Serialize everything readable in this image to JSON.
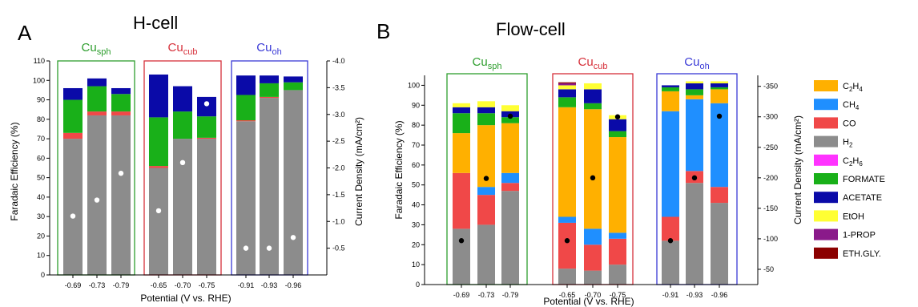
{
  "panel_a": {
    "letter": "A",
    "title": "H-cell",
    "xlabel": "Potential (V vs. RHE)",
    "ylabel": "Faradaic Efficiency (%)",
    "y2label": "Current Density (mA/cm²)",
    "groups": [
      {
        "base": "Cu",
        "sub": "sph",
        "color": "#2e9e2e"
      },
      {
        "base": "Cu",
        "sub": "cub",
        "color": "#d6303a"
      },
      {
        "base": "Cu",
        "sub": "oh",
        "color": "#3a3ad6"
      }
    ]
  },
  "panel_b": {
    "letter": "B",
    "title": "Flow-cell",
    "xlabel": "Potential (V vs. RHE)",
    "ylabel": "Faradaic Efficiency (%)",
    "y2label": "Current Density (mA/cm²)",
    "groups": [
      {
        "base": "Cu",
        "sub": "sph",
        "color": "#2e9e2e"
      },
      {
        "base": "Cu",
        "sub": "cub",
        "color": "#d6303a"
      },
      {
        "base": "Cu",
        "sub": "oh",
        "color": "#3a3ad6"
      }
    ]
  },
  "legend": [
    {
      "base": "C",
      "sub1": "2",
      "mid": "H",
      "sub2": "4",
      "color": "#ffb000"
    },
    {
      "base": "CH",
      "sub1": "4",
      "mid": "",
      "sub2": "",
      "color": "#1f8fff"
    },
    {
      "base": "CO",
      "sub1": "",
      "mid": "",
      "sub2": "",
      "color": "#f04848"
    },
    {
      "base": "H",
      "sub1": "2",
      "mid": "",
      "sub2": "",
      "color": "#8c8c8c"
    },
    {
      "base": "C",
      "sub1": "2",
      "mid": "H",
      "sub2": "6",
      "color": "#ff33ff"
    },
    {
      "base": "FORMATE",
      "sub1": "",
      "mid": "",
      "sub2": "",
      "color": "#19b019"
    },
    {
      "base": "ACETATE",
      "sub1": "",
      "mid": "",
      "sub2": "",
      "color": "#0a0aa8"
    },
    {
      "base": "EtOH",
      "sub1": "",
      "mid": "",
      "sub2": "",
      "color": "#ffff33"
    },
    {
      "base": "1-PROP",
      "sub1": "",
      "mid": "",
      "sub2": "",
      "color": "#8a1a8a"
    },
    {
      "base": "ETH.GLY.",
      "sub1": "",
      "mid": "",
      "sub2": "",
      "color": "#8b0000"
    }
  ],
  "chart_data": [
    {
      "type": "bar",
      "stacked": true,
      "title": "H-cell",
      "xlabel": "Potential (V vs. RHE)",
      "ylabel": "Faradaic Efficiency (%)",
      "y2label": "Current Density (mA/cm²)",
      "ylim": [
        0,
        110
      ],
      "yticks": [
        0,
        10,
        20,
        30,
        40,
        50,
        60,
        70,
        80,
        90,
        100,
        110
      ],
      "y2lim": [
        0,
        -4.0
      ],
      "y2ticks": [
        "-0.5",
        "-1.0",
        "-1.5",
        "-2.0",
        "-2.5",
        "-3.0",
        "-3.5",
        "-4.0"
      ],
      "y2tick_values": [
        -0.5,
        -1.0,
        -1.5,
        -2.0,
        -2.5,
        -3.0,
        -3.5,
        -4.0
      ],
      "categories": [
        "-0.69",
        "-0.73",
        "-0.79",
        "-0.65",
        "-0.70",
        "-0.75",
        "-0.91",
        "-0.93",
        "-0.96"
      ],
      "group_of_category": [
        0,
        0,
        0,
        1,
        1,
        1,
        2,
        2,
        2
      ],
      "series": [
        {
          "name": "H2",
          "color": "#8c8c8c",
          "values": [
            70,
            82,
            82,
            55,
            70,
            70,
            79,
            91,
            95
          ]
        },
        {
          "name": "CO",
          "color": "#f04848",
          "values": [
            3,
            2,
            2,
            1,
            0,
            0.5,
            0.5,
            0.5,
            0
          ]
        },
        {
          "name": "FORMATE",
          "color": "#19b019",
          "values": [
            17,
            13,
            9,
            25,
            14,
            11,
            13,
            7,
            4
          ]
        },
        {
          "name": "ACETATE",
          "color": "#0a0aa8",
          "values": [
            6,
            4,
            3,
            22,
            13,
            10,
            10,
            4,
            3
          ]
        }
      ],
      "current_density": [
        -1.1,
        -1.4,
        -1.9,
        -1.2,
        -2.1,
        -3.2,
        -0.5,
        -0.5,
        -0.7
      ]
    },
    {
      "type": "bar",
      "stacked": true,
      "title": "Flow-cell",
      "xlabel": "Potential (V vs. RHE)",
      "ylabel": "Faradaic Efficiency (%)",
      "y2label": "Current Density (mA/cm²)",
      "ylim": [
        0,
        105
      ],
      "yticks": [
        0,
        10,
        20,
        30,
        40,
        50,
        60,
        70,
        80,
        90,
        100
      ],
      "y2lim": [
        -25,
        -368
      ],
      "y2ticks": [
        "-50",
        "-100",
        "-150",
        "-200",
        "-250",
        "-300",
        "-350"
      ],
      "y2tick_values": [
        -50,
        -100,
        -150,
        -200,
        -250,
        -300,
        -350
      ],
      "categories": [
        "-0.69",
        "-0.73",
        "-0.79",
        "-0.65",
        "-0.70",
        "-0.75",
        "-0.91",
        "-0.93",
        "-0.96"
      ],
      "group_of_category": [
        0,
        0,
        0,
        1,
        1,
        1,
        2,
        2,
        2
      ],
      "series": [
        {
          "name": "H2",
          "color": "#8c8c8c",
          "values": [
            28,
            30,
            47,
            8,
            7,
            10,
            22,
            51,
            41
          ]
        },
        {
          "name": "CO",
          "color": "#f04848",
          "values": [
            28,
            15,
            4,
            23,
            13,
            13,
            12,
            6,
            8
          ]
        },
        {
          "name": "CH4",
          "color": "#1f8fff",
          "values": [
            0,
            4,
            5,
            3,
            8,
            3,
            53,
            36,
            42
          ]
        },
        {
          "name": "C2H4",
          "color": "#ffb000",
          "values": [
            20,
            31,
            25,
            55,
            60,
            48,
            10,
            2,
            7
          ]
        },
        {
          "name": "FORMATE",
          "color": "#19b019",
          "values": [
            10,
            6,
            3,
            5,
            3,
            3,
            2,
            3,
            1
          ]
        },
        {
          "name": "ACETATE",
          "color": "#0a0aa8",
          "values": [
            3,
            3,
            3,
            4,
            7,
            6,
            1,
            3,
            2
          ]
        },
        {
          "name": "EtOH",
          "color": "#ffff33",
          "values": [
            2,
            3,
            3,
            2,
            3,
            2,
            0,
            1,
            1
          ]
        },
        {
          "name": "1-PROP",
          "color": "#8a1a8a",
          "values": [
            0,
            0,
            0,
            1,
            0,
            0,
            0,
            0,
            0
          ]
        },
        {
          "name": "ETH.GLY.",
          "color": "#8b0000",
          "values": [
            0,
            0,
            0,
            0.5,
            0,
            0,
            0,
            0,
            0
          ]
        }
      ],
      "current_density": [
        -97,
        -199,
        -301,
        -97,
        -200,
        -300,
        -97,
        -200,
        -301
      ]
    }
  ]
}
